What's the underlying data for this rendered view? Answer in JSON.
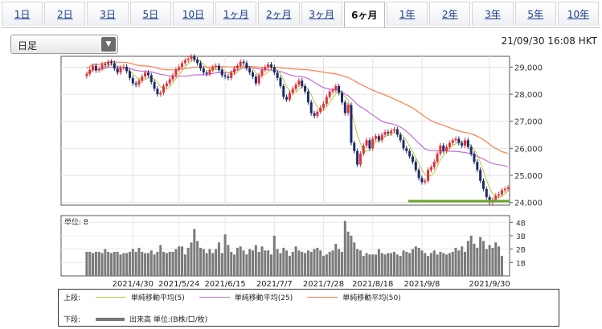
{
  "tabs": [
    {
      "label": "1日",
      "active": false
    },
    {
      "label": "2日",
      "active": false
    },
    {
      "label": "3日",
      "active": false
    },
    {
      "label": "5日",
      "active": false
    },
    {
      "label": "10日",
      "active": false
    },
    {
      "label": "1ヶ月",
      "active": false
    },
    {
      "label": "2ヶ月",
      "active": false
    },
    {
      "label": "3ヶ月",
      "active": false
    },
    {
      "label": "6ヶ月",
      "active": true
    },
    {
      "label": "1年",
      "active": false
    },
    {
      "label": "2年",
      "active": false
    },
    {
      "label": "3年",
      "active": false
    },
    {
      "label": "5年",
      "active": false
    },
    {
      "label": "10年",
      "active": false
    }
  ],
  "period_select": {
    "value": "日足"
  },
  "timestamp": "21/09/30 16:08 HKT",
  "legend": {
    "upper_label": "上段:",
    "lower_label": "下段:",
    "ma5": "単純移動平均(5)",
    "ma25": "単純移動平均(25)",
    "ma50": "単純移動平均(50)",
    "volume": "出来高 単位:(B株/口/枚)"
  },
  "colors": {
    "up": "#e0303a",
    "down": "#1e2a6a",
    "ma5": "#b4cc3a",
    "ma25": "#c46ed8",
    "ma50": "#ff7c4a",
    "volume": "#7a7a7a",
    "support": "#6aa52a"
  },
  "chart_data": [
    {
      "type": "candlestick",
      "ylim": [
        23900,
        29400
      ],
      "yticks": [
        "29,000",
        "28,000",
        "27,000",
        "26,000",
        "25,000",
        "24,000"
      ],
      "xticks": [
        "2021/4/30",
        "2021/5/24",
        "2021/6/15",
        "2021/7/7",
        "2021/7/28",
        "2021/8/18",
        "2021/9/8",
        "2021/9/30"
      ],
      "close": [
        28750,
        28900,
        29050,
        28880,
        28940,
        29100,
        29080,
        29200,
        29150,
        28950,
        28800,
        28980,
        29010,
        28850,
        28600,
        28400,
        28350,
        28500,
        28650,
        28800,
        28700,
        28450,
        28200,
        28000,
        28050,
        28300,
        28400,
        28550,
        28700,
        28900,
        29000,
        29150,
        29250,
        29300,
        29400,
        29280,
        29150,
        28950,
        28800,
        28750,
        28900,
        29000,
        29050,
        28900,
        28700,
        28650,
        28600,
        28800,
        28950,
        29050,
        29200,
        29150,
        28950,
        28800,
        28650,
        28400,
        28700,
        28900,
        29000,
        29100,
        29000,
        28800,
        28600,
        28300,
        27900,
        27800,
        28050,
        28200,
        28350,
        28500,
        28300,
        28100,
        27700,
        27300,
        27200,
        27350,
        27500,
        27650,
        27900,
        28100,
        28150,
        28300,
        28050,
        27700,
        27300,
        27600,
        26200,
        25900,
        25400,
        25800,
        26100,
        26300,
        26000,
        26350,
        26450,
        26300,
        26500,
        26600,
        26550,
        26650,
        26700,
        26500,
        26300,
        26000,
        25900,
        25700,
        25500,
        25200,
        24900,
        24750,
        24800,
        25200,
        25300,
        25500,
        25800,
        26100,
        25900,
        26050,
        26200,
        26300,
        26350,
        26200,
        26100,
        26300,
        26050,
        25800,
        25500,
        25200,
        24800,
        24500,
        24200,
        24000,
        24100,
        24250,
        24300,
        24450,
        24500,
        24550
      ],
      "ma5": [
        28700,
        28800,
        28900,
        29000,
        28950,
        28900,
        28850,
        28800,
        28700,
        28600,
        28500,
        28400,
        28300,
        28200,
        28150,
        28200,
        28300,
        28450,
        28600,
        28750,
        28900,
        29050,
        29150,
        29200,
        29150,
        29050,
        28950,
        28850,
        28800,
        28850,
        28900,
        28950,
        28950,
        28900,
        28850,
        28800,
        28750,
        28800,
        28850,
        28950,
        29050,
        29100,
        29050,
        28950,
        28750,
        28500,
        28250,
        28050,
        27950,
        28000,
        28100,
        28200,
        28300,
        28200,
        28000,
        27750,
        27500,
        27400,
        27450,
        27600,
        27800,
        27950,
        28050,
        28100,
        28000,
        27800,
        27400,
        26900,
        26400,
        26000,
        25800,
        25850,
        26000,
        26150,
        26250,
        26350,
        26450,
        26550,
        26600,
        26600,
        26550,
        26400,
        26200,
        26000,
        25750,
        25500,
        25250,
        25050,
        25000,
        25100,
        25300,
        25550,
        25800,
        25950,
        26100,
        26200,
        26250,
        26250,
        26150,
        25950,
        25650,
        25300,
        24950,
        24600,
        24300,
        24200,
        24250,
        24350,
        24450
      ]
    },
    {
      "type": "bar",
      "title": "単位: B",
      "yticks": [
        "4B",
        "3B",
        "2B",
        "1B"
      ],
      "ylim": [
        0,
        4.5
      ],
      "values": [
        1.8,
        1.8,
        1.7,
        1.8,
        1.8,
        1.7,
        2.0,
        1.8,
        1.7,
        1.8,
        1.8,
        1.6,
        1.7,
        1.7,
        1.8,
        2.0,
        1.8,
        2.1,
        1.8,
        1.7,
        1.7,
        1.9,
        1.6,
        1.8,
        2.3,
        1.8,
        1.7,
        1.8,
        1.8,
        2.0,
        2.2,
        2.2,
        1.6,
        2.1,
        2.5,
        3.5,
        2.6,
        2.1,
        2.0,
        1.7,
        2.0,
        1.7,
        2.0,
        2.5,
        1.7,
        3.1,
        2.3,
        1.8,
        1.6,
        2.1,
        2.2,
        1.9,
        1.6,
        2.0,
        1.9,
        2.3,
        1.8,
        2.2,
        1.9,
        1.9,
        1.6,
        3.0,
        2.0,
        1.7,
        2.1,
        1.9,
        1.5,
        1.8,
        2.2,
        1.9,
        1.8,
        1.7,
        1.9,
        1.8,
        2.0,
        2.1,
        1.9,
        1.5,
        1.6,
        1.8,
        1.9,
        2.4,
        2.0,
        1.8,
        4.1,
        3.3,
        3.0,
        2.5,
        2.0,
        1.9,
        1.5,
        1.7,
        1.6,
        1.6,
        1.6,
        2.0,
        1.7,
        1.6,
        1.7,
        1.7,
        1.8,
        1.6,
        1.5,
        1.9,
        1.8,
        1.7,
        2.0,
        2.2,
        2.1,
        1.9,
        1.7,
        1.5,
        1.7,
        1.9,
        1.6,
        1.8,
        1.7,
        1.6,
        1.7,
        1.8,
        2.1,
        1.9,
        2.2,
        1.8,
        2.6,
        3.0,
        2.4,
        2.1,
        2.9,
        2.6,
        2.0,
        2.3,
        2.1,
        2.5,
        2.2,
        1.5
      ]
    }
  ]
}
